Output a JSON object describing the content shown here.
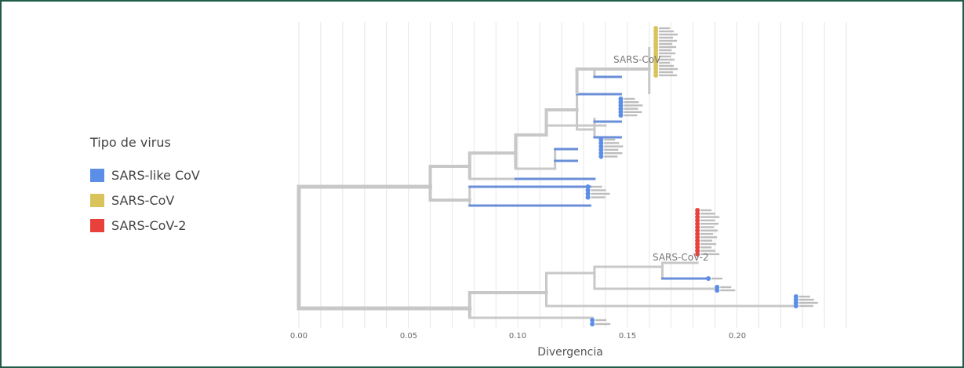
{
  "legend": {
    "title": "Tipo de virus",
    "items": [
      {
        "label": "SARS-like CoV",
        "color": "#5b8ee6"
      },
      {
        "label": "SARS-CoV",
        "color": "#d9c35a"
      },
      {
        "label": "SARS-CoV-2",
        "color": "#e8413c"
      }
    ]
  },
  "colors": {
    "frame": "#1f5d48",
    "branch": "#c8c8c8",
    "grid": "#e6e6e6"
  },
  "chart_data": {
    "type": "phylogenetic-tree",
    "xlabel": "Divergencia",
    "xlim": [
      0,
      0.25
    ],
    "xticks": [
      "0.00",
      "0.05",
      "0.10",
      "0.15",
      "0.20"
    ],
    "grid": "vertical",
    "legend_position": "left",
    "clade_labels": [
      {
        "label": "SARS-CoV",
        "divergence": 0.16
      },
      {
        "label": "SARS-CoV-2",
        "divergence": 0.18
      }
    ],
    "leaf_groups": [
      {
        "type": "SARS-CoV",
        "divergence": 0.163,
        "count": 16
      },
      {
        "type": "SARS-like CoV",
        "divergence": 0.147,
        "count": 6
      },
      {
        "type": "SARS-like CoV",
        "divergence": 0.138,
        "count": 6
      },
      {
        "type": "SARS-like CoV",
        "divergence": 0.132,
        "count": 4
      },
      {
        "type": "SARS-CoV-2",
        "divergence": 0.182,
        "count": 14
      },
      {
        "type": "SARS-like CoV",
        "divergence": 0.187,
        "count": 1
      },
      {
        "type": "SARS-like CoV",
        "divergence": 0.191,
        "count": 2
      },
      {
        "type": "SARS-like CoV",
        "divergence": 0.227,
        "count": 4
      },
      {
        "type": "SARS-like CoV",
        "divergence": 0.134,
        "count": 2
      }
    ]
  }
}
